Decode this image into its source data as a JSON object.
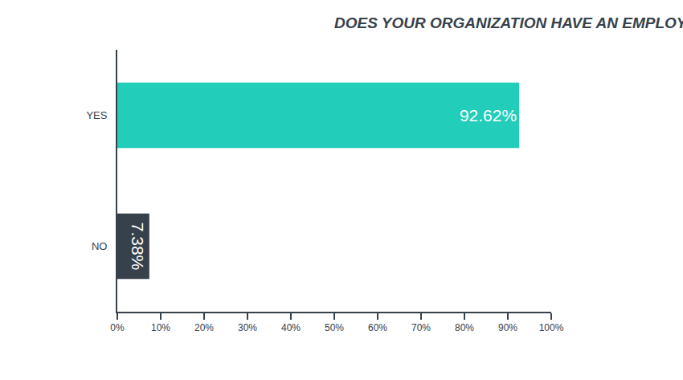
{
  "chart_data": {
    "type": "bar",
    "title": "DOES YOUR ORGANIZATION HAVE AN EMPLOYEE INTRANET?",
    "orientation": "horizontal",
    "categories": [
      "YES",
      "NO"
    ],
    "values": [
      92.62,
      7.38
    ],
    "value_labels": [
      "92.62%",
      "7.38%"
    ],
    "colors": [
      "#22cdb9",
      "#37414b"
    ],
    "data_labels": true,
    "grid": false,
    "xlim": [
      0,
      100
    ],
    "xticks": [
      {
        "value": 0,
        "label": "0%"
      },
      {
        "value": 10,
        "label": "10%"
      },
      {
        "value": 20,
        "label": "20%"
      },
      {
        "value": 30,
        "label": "30%"
      },
      {
        "value": 40,
        "label": "40%"
      },
      {
        "value": 50,
        "label": "50%"
      },
      {
        "value": 60,
        "label": "60%"
      },
      {
        "value": 70,
        "label": "70%"
      },
      {
        "value": 80,
        "label": "80%"
      },
      {
        "value": 90,
        "label": "90%"
      },
      {
        "value": 100,
        "label": "100%"
      }
    ]
  }
}
